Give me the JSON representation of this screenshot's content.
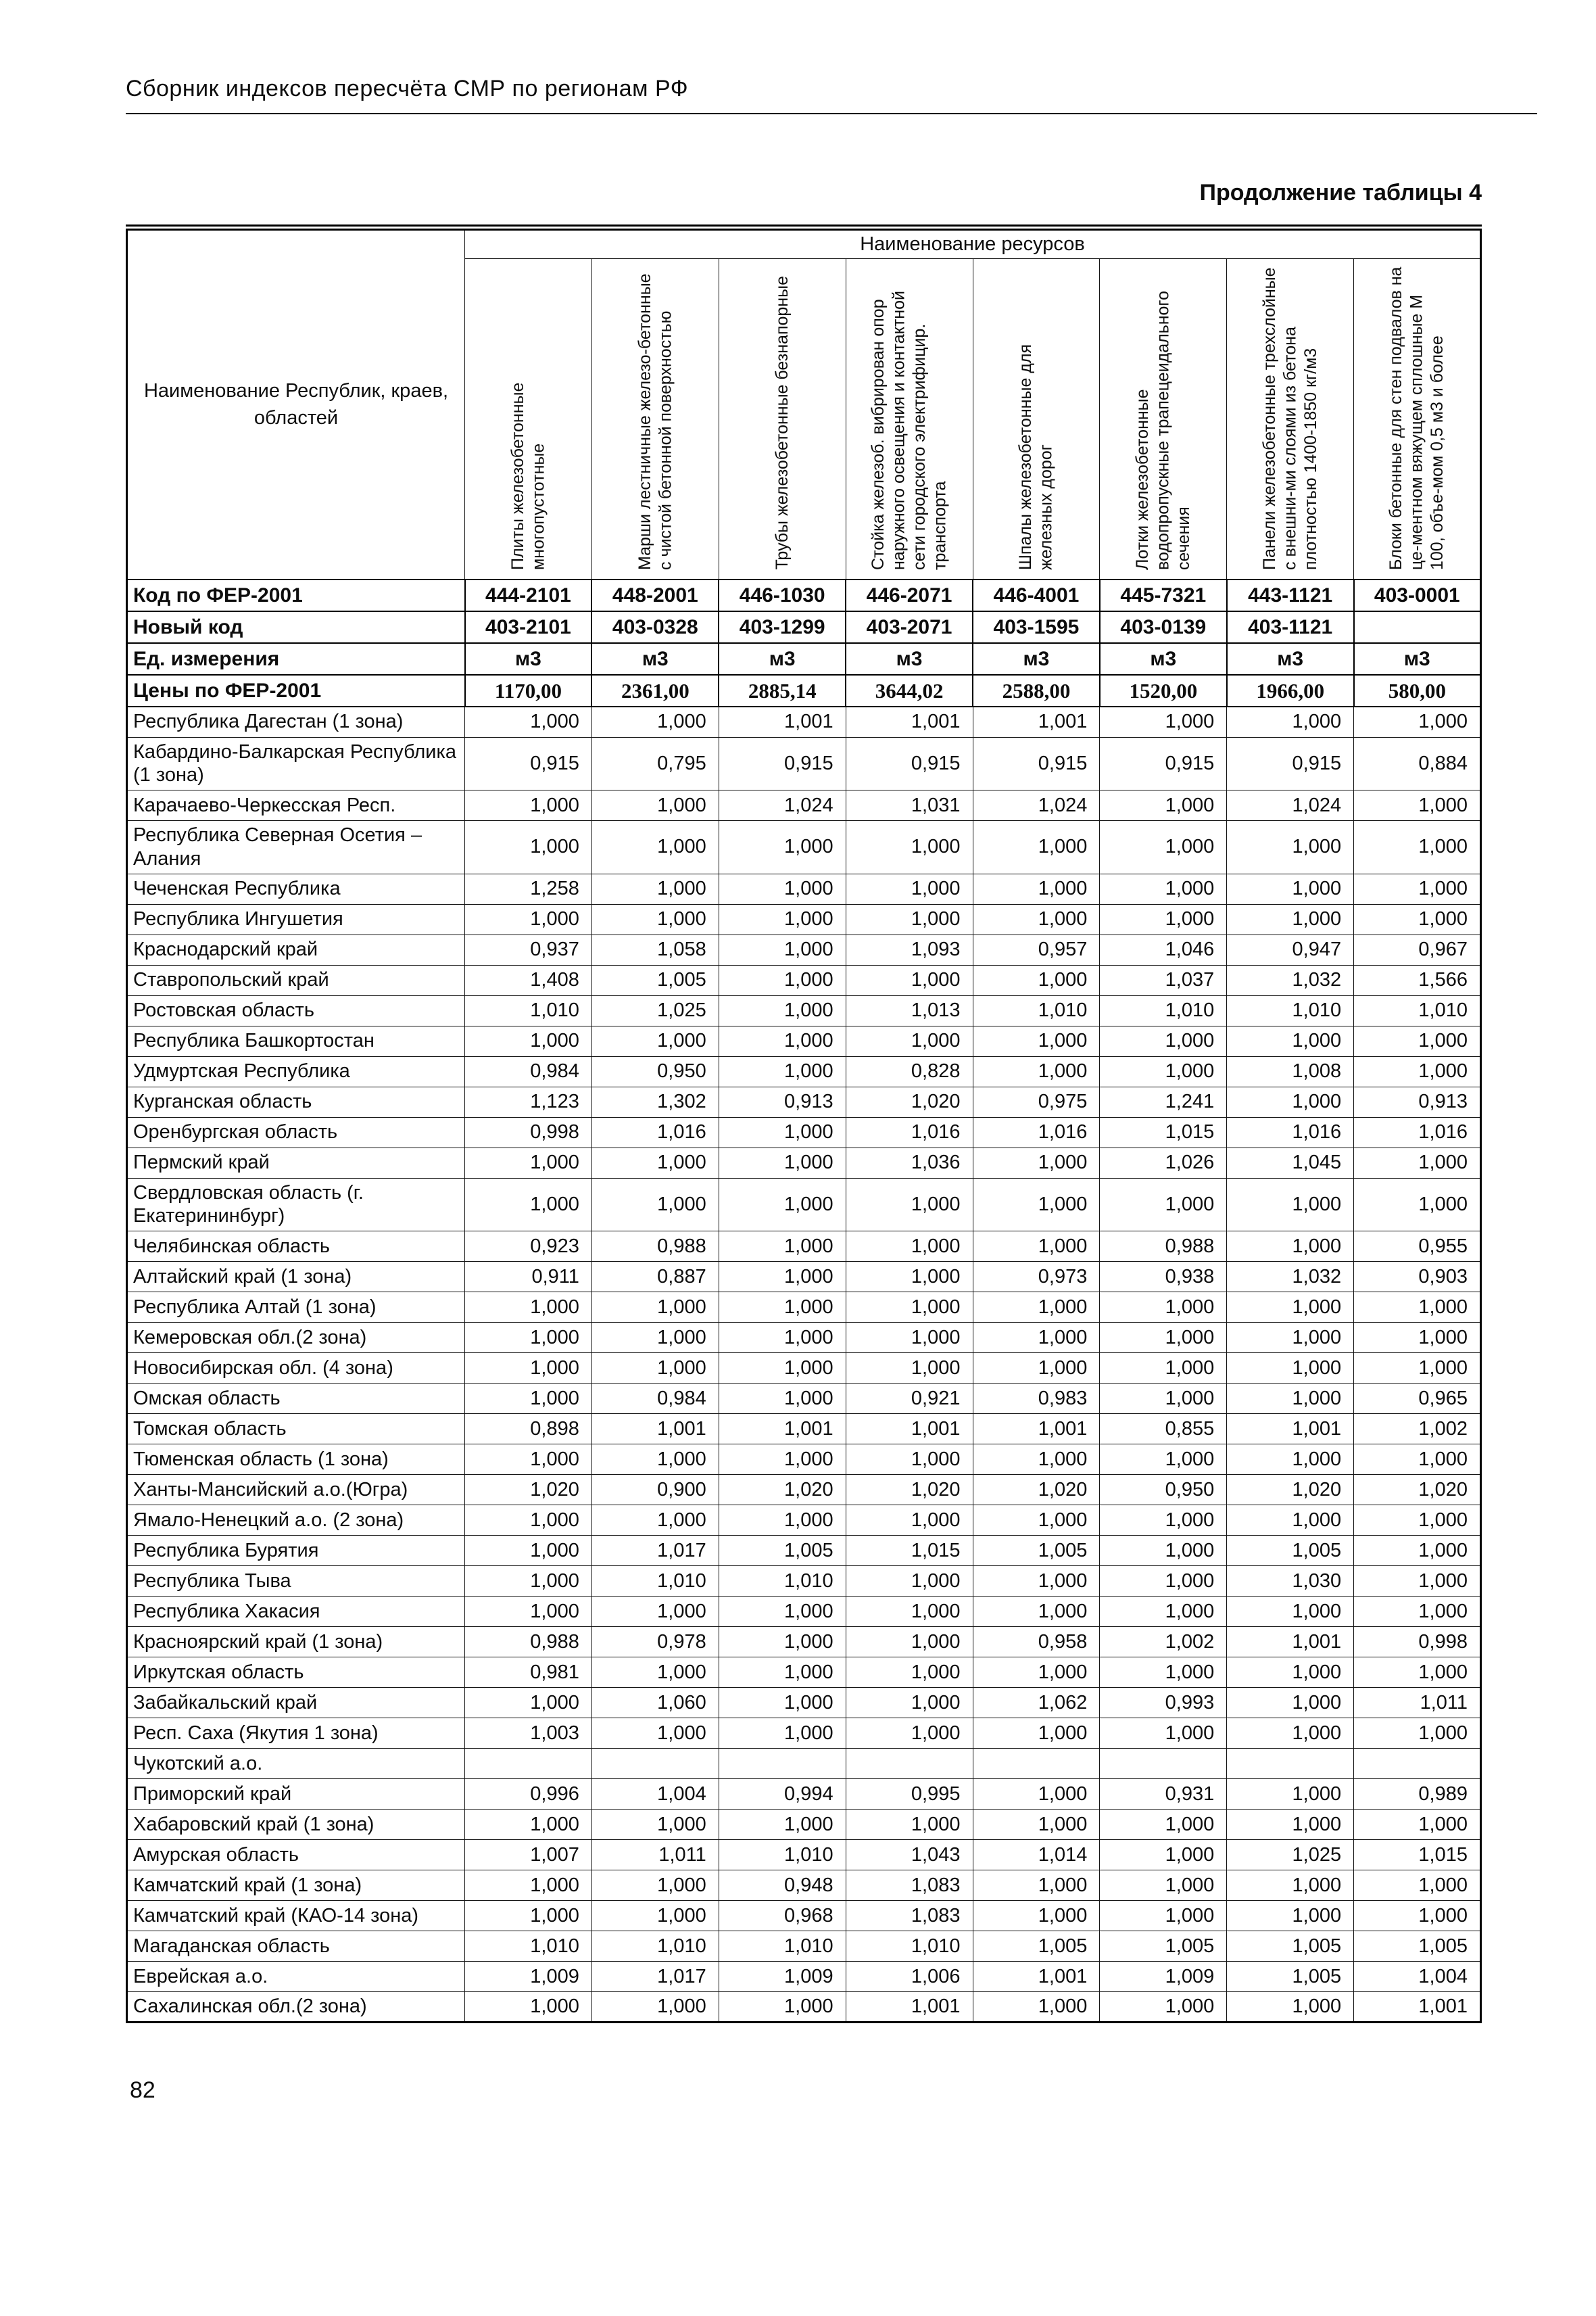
{
  "page": {
    "header": "Сборник индексов пересчёта СМР  по регионам РФ",
    "table_caption": "Продолжение таблицы 4",
    "page_number": "82"
  },
  "table": {
    "corner_header": "Наименование Республик, краев, областей",
    "resources_header": "Наименование ресурсов",
    "column_headers": [
      "Плиты железобетонные многопустотные",
      "Марши лестничные железо-бетонные с чистой бетонной поверхностью",
      "Трубы железобетонные безнапорные",
      "Стойка железоб. вибрирован опор наружного освещения и контактной сети городского электрифицир. транспорта",
      "Шпалы железобетонные для железных дорог",
      "Лотки железобетонные водопропускные трапецеидального сечения",
      "Панели железобетонные трехслойные с внешни-ми слоями из бетона плотностью 1400-1850 кг/м3",
      "Блоки бетонные для стен подвалов на це-ментном вяжущем сплошные М 100, объе-мом 0,5 м3 и более"
    ],
    "meta_rows": [
      {
        "label": "Код по ФЕР-2001",
        "values": [
          "444-2101",
          "448-2001",
          "446-1030",
          "446-2071",
          "446-4001",
          "445-7321",
          "443-1121",
          "403-0001"
        ]
      },
      {
        "label": "Новый код",
        "values": [
          "403-2101",
          "403-0328",
          "403-1299",
          "403-2071",
          "403-1595",
          "403-0139",
          "403-1121",
          ""
        ]
      },
      {
        "label": "Ед. измерения",
        "values": [
          "м3",
          "м3",
          "м3",
          "м3",
          "м3",
          "м3",
          "м3",
          "м3"
        ]
      },
      {
        "label": "Цены по ФЕР-2001",
        "values": [
          "1170,00",
          "2361,00",
          "2885,14",
          "3644,02",
          "2588,00",
          "1520,00",
          "1966,00",
          "580,00"
        ]
      }
    ],
    "rows": [
      {
        "region": "Республика Дагестан (1 зона)",
        "values": [
          "1,000",
          "1,000",
          "1,001",
          "1,001",
          "1,001",
          "1,000",
          "1,000",
          "1,000"
        ]
      },
      {
        "region": "Кабардино-Балкарская Республика (1 зона)",
        "values": [
          "0,915",
          "0,795",
          "0,915",
          "0,915",
          "0,915",
          "0,915",
          "0,915",
          "0,884"
        ]
      },
      {
        "region": "Карачаево-Черкесская Респ.",
        "values": [
          "1,000",
          "1,000",
          "1,024",
          "1,031",
          "1,024",
          "1,000",
          "1,024",
          "1,000"
        ]
      },
      {
        "region": "Республика Северная Осетия – Алания",
        "values": [
          "1,000",
          "1,000",
          "1,000",
          "1,000",
          "1,000",
          "1,000",
          "1,000",
          "1,000"
        ]
      },
      {
        "region": "Чеченская Республика",
        "values": [
          "1,258",
          "1,000",
          "1,000",
          "1,000",
          "1,000",
          "1,000",
          "1,000",
          "1,000"
        ]
      },
      {
        "region": "Республика Ингушетия",
        "values": [
          "1,000",
          "1,000",
          "1,000",
          "1,000",
          "1,000",
          "1,000",
          "1,000",
          "1,000"
        ]
      },
      {
        "region": "Краснодарский край",
        "values": [
          "0,937",
          "1,058",
          "1,000",
          "1,093",
          "0,957",
          "1,046",
          "0,947",
          "0,967"
        ]
      },
      {
        "region": "Ставропольский край",
        "values": [
          "1,408",
          "1,005",
          "1,000",
          "1,000",
          "1,000",
          "1,037",
          "1,032",
          "1,566"
        ]
      },
      {
        "region": "Ростовская область",
        "values": [
          "1,010",
          "1,025",
          "1,000",
          "1,013",
          "1,010",
          "1,010",
          "1,010",
          "1,010"
        ]
      },
      {
        "region": "Республика Башкортостан",
        "values": [
          "1,000",
          "1,000",
          "1,000",
          "1,000",
          "1,000",
          "1,000",
          "1,000",
          "1,000"
        ]
      },
      {
        "region": "Удмуртская Республика",
        "values": [
          "0,984",
          "0,950",
          "1,000",
          "0,828",
          "1,000",
          "1,000",
          "1,008",
          "1,000"
        ]
      },
      {
        "region": "Курганская область",
        "values": [
          "1,123",
          "1,302",
          "0,913",
          "1,020",
          "0,975",
          "1,241",
          "1,000",
          "0,913"
        ]
      },
      {
        "region": "Оренбургская область",
        "values": [
          "0,998",
          "1,016",
          "1,000",
          "1,016",
          "1,016",
          "1,015",
          "1,016",
          "1,016"
        ]
      },
      {
        "region": "Пермский край",
        "values": [
          "1,000",
          "1,000",
          "1,000",
          "1,036",
          "1,000",
          "1,026",
          "1,045",
          "1,000"
        ]
      },
      {
        "region": "Свердловская область (г. Екатерининбург)",
        "values": [
          "1,000",
          "1,000",
          "1,000",
          "1,000",
          "1,000",
          "1,000",
          "1,000",
          "1,000"
        ]
      },
      {
        "region": "Челябинская область",
        "values": [
          "0,923",
          "0,988",
          "1,000",
          "1,000",
          "1,000",
          "0,988",
          "1,000",
          "0,955"
        ]
      },
      {
        "region": "Алтайский край (1 зона)",
        "values": [
          "0,911",
          "0,887",
          "1,000",
          "1,000",
          "0,973",
          "0,938",
          "1,032",
          "0,903"
        ]
      },
      {
        "region": "Республика Алтай (1 зона)",
        "values": [
          "1,000",
          "1,000",
          "1,000",
          "1,000",
          "1,000",
          "1,000",
          "1,000",
          "1,000"
        ]
      },
      {
        "region": "Кемеровская обл.(2 зона)",
        "values": [
          "1,000",
          "1,000",
          "1,000",
          "1,000",
          "1,000",
          "1,000",
          "1,000",
          "1,000"
        ]
      },
      {
        "region": "Новосибирская обл. (4 зона)",
        "values": [
          "1,000",
          "1,000",
          "1,000",
          "1,000",
          "1,000",
          "1,000",
          "1,000",
          "1,000"
        ]
      },
      {
        "region": "Омская область",
        "values": [
          "1,000",
          "0,984",
          "1,000",
          "0,921",
          "0,983",
          "1,000",
          "1,000",
          "0,965"
        ]
      },
      {
        "region": "Томская область",
        "values": [
          "0,898",
          "1,001",
          "1,001",
          "1,001",
          "1,001",
          "0,855",
          "1,001",
          "1,002"
        ]
      },
      {
        "region": "Тюменская область (1 зона)",
        "values": [
          "1,000",
          "1,000",
          "1,000",
          "1,000",
          "1,000",
          "1,000",
          "1,000",
          "1,000"
        ]
      },
      {
        "region": "Ханты-Мансийский а.о.(Югра)",
        "values": [
          "1,020",
          "0,900",
          "1,020",
          "1,020",
          "1,020",
          "0,950",
          "1,020",
          "1,020"
        ]
      },
      {
        "region": "Ямало-Ненецкий а.о. (2 зона)",
        "values": [
          "1,000",
          "1,000",
          "1,000",
          "1,000",
          "1,000",
          "1,000",
          "1,000",
          "1,000"
        ]
      },
      {
        "region": "Республика Бурятия",
        "values": [
          "1,000",
          "1,017",
          "1,005",
          "1,015",
          "1,005",
          "1,000",
          "1,005",
          "1,000"
        ]
      },
      {
        "region": "Республика Тыва",
        "values": [
          "1,000",
          "1,010",
          "1,010",
          "1,000",
          "1,000",
          "1,000",
          "1,030",
          "1,000"
        ]
      },
      {
        "region": "Республика Хакасия",
        "values": [
          "1,000",
          "1,000",
          "1,000",
          "1,000",
          "1,000",
          "1,000",
          "1,000",
          "1,000"
        ]
      },
      {
        "region": "Красноярский край (1 зона)",
        "values": [
          "0,988",
          "0,978",
          "1,000",
          "1,000",
          "0,958",
          "1,002",
          "1,001",
          "0,998"
        ]
      },
      {
        "region": "Иркутская область",
        "values": [
          "0,981",
          "1,000",
          "1,000",
          "1,000",
          "1,000",
          "1,000",
          "1,000",
          "1,000"
        ]
      },
      {
        "region": "Забайкальский край",
        "values": [
          "1,000",
          "1,060",
          "1,000",
          "1,000",
          "1,062",
          "0,993",
          "1,000",
          "1,011"
        ]
      },
      {
        "region": "Респ. Саха (Якутия 1 зона)",
        "values": [
          "1,003",
          "1,000",
          "1,000",
          "1,000",
          "1,000",
          "1,000",
          "1,000",
          "1,000"
        ]
      },
      {
        "region": "Чукотский а.о.",
        "values": [
          "",
          "",
          "",
          "",
          "",
          "",
          "",
          ""
        ]
      },
      {
        "region": "Приморский край",
        "values": [
          "0,996",
          "1,004",
          "0,994",
          "0,995",
          "1,000",
          "0,931",
          "1,000",
          "0,989"
        ]
      },
      {
        "region": "Хабаровский край (1 зона)",
        "values": [
          "1,000",
          "1,000",
          "1,000",
          "1,000",
          "1,000",
          "1,000",
          "1,000",
          "1,000"
        ]
      },
      {
        "region": "Амурская область",
        "values": [
          "1,007",
          "1,011",
          "1,010",
          "1,043",
          "1,014",
          "1,000",
          "1,025",
          "1,015"
        ]
      },
      {
        "region": "Камчатский край (1 зона)",
        "values": [
          "1,000",
          "1,000",
          "0,948",
          "1,083",
          "1,000",
          "1,000",
          "1,000",
          "1,000"
        ]
      },
      {
        "region": "Камчатский край (КАО-14 зона)",
        "values": [
          "1,000",
          "1,000",
          "0,968",
          "1,083",
          "1,000",
          "1,000",
          "1,000",
          "1,000"
        ]
      },
      {
        "region": "Магаданская область",
        "values": [
          "1,010",
          "1,010",
          "1,010",
          "1,010",
          "1,005",
          "1,005",
          "1,005",
          "1,005"
        ]
      },
      {
        "region": "Еврейская а.о.",
        "values": [
          "1,009",
          "1,017",
          "1,009",
          "1,006",
          "1,001",
          "1,009",
          "1,005",
          "1,004"
        ]
      },
      {
        "region": "Сахалинская обл.(2 зона)",
        "values": [
          "1,000",
          "1,000",
          "1,000",
          "1,001",
          "1,000",
          "1,000",
          "1,000",
          "1,001"
        ]
      }
    ]
  }
}
